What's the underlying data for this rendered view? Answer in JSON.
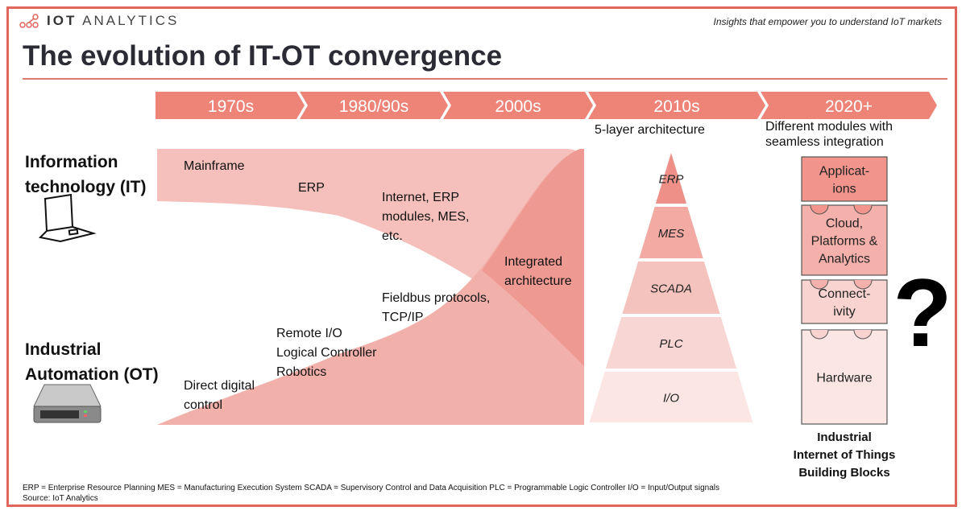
{
  "header": {
    "logo_text_bold": "IOT",
    "logo_text": "ANALYTICS",
    "tagline": "Insights that empower you to understand IoT markets",
    "title": "The evolution of IT-OT convergence"
  },
  "timeline": [
    "1970s",
    "1980/90s",
    "2000s",
    "2010s",
    "2020+"
  ],
  "left_labels": {
    "it": [
      "Information",
      "technology (IT)"
    ],
    "ot": [
      "Industrial",
      "Automation (OT)"
    ]
  },
  "it_items": [
    "Mainframe",
    "ERP",
    "Internet, ERP",
    "modules, MES,",
    "etc."
  ],
  "ot_items": [
    "Direct digital",
    "control",
    "Remote I/O",
    "Logical Controller",
    "Robotics",
    "Fieldbus protocols,",
    "TCP/IP"
  ],
  "integrated": [
    "Integrated",
    "architecture"
  ],
  "pyramid": {
    "caption": "5-layer architecture",
    "layers": [
      "ERP",
      "MES",
      "SCADA",
      "PLC",
      "I/O"
    ]
  },
  "blocks": {
    "caption": [
      "Different modules with",
      "seamless integration"
    ],
    "items": [
      [
        "Applicat-",
        "ions"
      ],
      [
        "Cloud,",
        "Platforms &",
        "Analytics"
      ],
      [
        "Connect-",
        "ivity"
      ],
      [
        "Hardware"
      ]
    ],
    "overlay": "?",
    "footer": [
      "Industrial",
      "Internet of Things",
      "Building Blocks"
    ]
  },
  "footer": {
    "abbreviations": "ERP = Enterprise Resource Planning  MES = Manufacturing Execution System  SCADA = Supervisory Control and Data Acquisition  PLC = Programmable Logic Controller  I/O = Input/Output signals",
    "source": "Source: IoT Analytics"
  },
  "colors": {
    "accent": "#e0665c",
    "timeline": "#ee8478",
    "it_band": "#f5c0bb",
    "ot_band": "#f2b0aa",
    "overlap": "#ee9a92"
  }
}
